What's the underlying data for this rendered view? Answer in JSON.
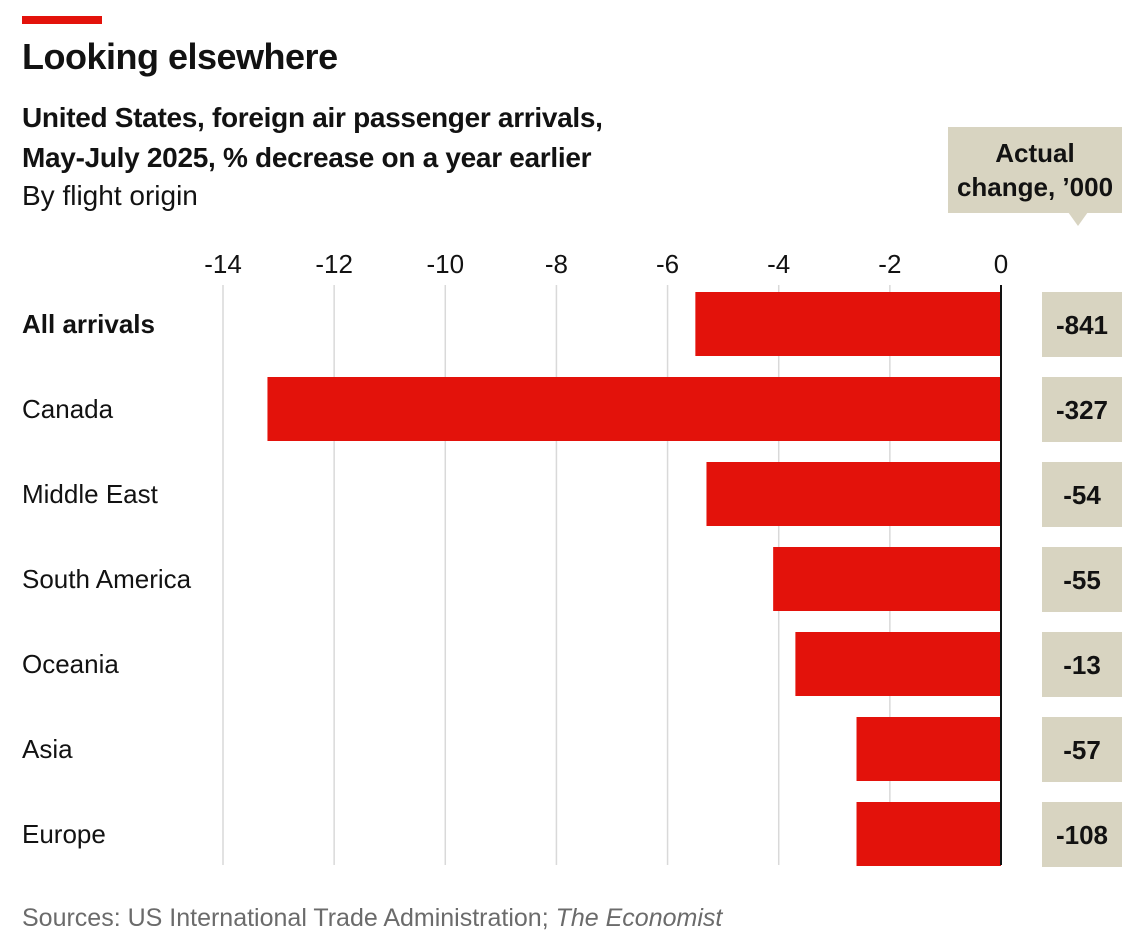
{
  "header": {
    "title": "Looking elsewhere",
    "subtitle_line1": "United States, foreign air passenger arrivals,",
    "subtitle_line2": "May-July 2025, % decrease on a year earlier",
    "subtitle_line3": "By flight origin"
  },
  "callout": {
    "line1": "Actual",
    "line2": "change, ’000"
  },
  "footer": {
    "source_prefix": "Sources: US International Trade Administration; ",
    "source_italic": "The Economist"
  },
  "colors": {
    "bar": "#e3120b",
    "value_box": "#d8d4c1",
    "gridline": "#d9d9d9",
    "zero_line": "#121212"
  },
  "chart_data": {
    "type": "bar",
    "orientation": "horizontal",
    "categories": [
      "All arrivals",
      "Canada",
      "Middle East",
      "South America",
      "Oceania",
      "Asia",
      "Europe"
    ],
    "bold_categories": [
      "All arrivals"
    ],
    "values": [
      -5.5,
      -13.2,
      -5.3,
      -4.1,
      -3.7,
      -2.6,
      -2.6
    ],
    "actual_change_thousands": [
      "-841",
      "-327",
      "-54",
      "-55",
      "-13",
      "-57",
      "-108"
    ],
    "xlim": [
      -14,
      0
    ],
    "xticks": [
      -14,
      -12,
      -10,
      -8,
      -6,
      -4,
      -2,
      0
    ],
    "tick_labels": [
      "-14",
      "-12",
      "-10",
      "-8",
      "-6",
      "-4",
      "-2",
      "0"
    ],
    "xlabel": "",
    "ylabel": "",
    "units": "% decrease on a year earlier",
    "grid": true
  }
}
